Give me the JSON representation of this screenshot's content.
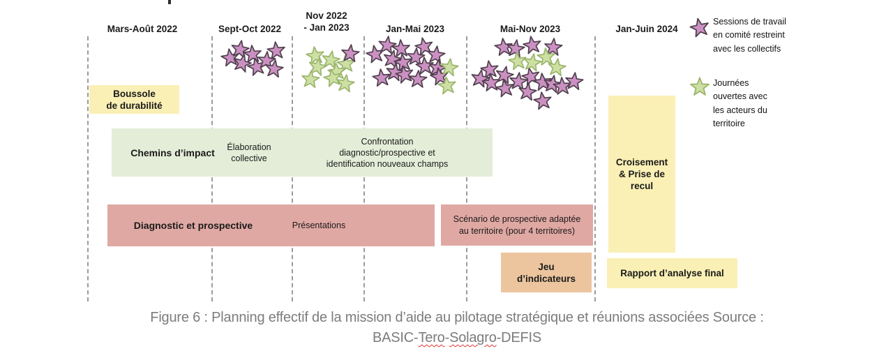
{
  "timeline": {
    "periods": [
      {
        "label": "Mars-Août 2022"
      },
      {
        "label": "Sept-Oct 2022"
      },
      {
        "label": "Nov 2022\n- Jan 2023"
      },
      {
        "label": "Jan-Mai 2023"
      },
      {
        "label": "Mai-Nov 2023"
      },
      {
        "label": "Jan-Juin 2024"
      }
    ]
  },
  "boxes": {
    "boussole": {
      "label": "Boussole\nde durabilité"
    },
    "chemins": {
      "title": "Chemins d’impact",
      "elaboration": "Élaboration\ncollective",
      "confrontation": "Confrontation\ndiagnostic/prospective et\nidentification nouveaux champs"
    },
    "diagnostic": {
      "title": "Diagnostic et prospective",
      "presentations": "Présentations"
    },
    "scenario": {
      "label": "Scénario de prospective adaptée\nau territoire (pour 4 territoires)"
    },
    "jeu": {
      "label": "Jeu\nd’indicateurs"
    },
    "croisement": {
      "label": "Croisement\n& Prise de\nrecul"
    },
    "rapport": {
      "label": "Rapport d’analyse final"
    }
  },
  "legend": {
    "items": [
      {
        "symbol": "pink-star",
        "label": "Sessions de travail en comité restreint avec les collectifs"
      },
      {
        "symbol": "green-star",
        "label": "Journées ouvertes avec les acteurs du territoire"
      }
    ]
  },
  "caption": {
    "line1": "Figure 6 : Planning effectif de la mission d’aide au pilotage stratégique et réunions associées Source :",
    "line2_prefix": "BASIC-",
    "line2_tero": "Tero",
    "line2_hyphen": "-",
    "line2_solagro": "Solagro",
    "line2_suffix": "-DEFIS"
  },
  "colors": {
    "pink": {
      "fill": "#cb90c2",
      "stroke": "#50404e"
    },
    "green": {
      "fill": "#cedfa4",
      "stroke": "#9ab56b"
    },
    "yellow_box": "#faf0b5",
    "green_bar": "#e4edd8",
    "pink_bar": "#e0a8a3",
    "orange_box": "#ecc59e"
  },
  "stars": {
    "clusters": [
      {
        "name": "sessions-sept-oct",
        "color": "pink",
        "points": [
          [
            330,
            83,
            -8
          ],
          [
            344,
            71,
            10
          ],
          [
            362,
            78,
            -5
          ],
          [
            347,
            91,
            15
          ],
          [
            368,
            96,
            -12
          ],
          [
            382,
            87,
            5
          ],
          [
            396,
            73,
            -6
          ],
          [
            393,
            99,
            8
          ]
        ]
      },
      {
        "name": "journees-nov-jan",
        "color": "green",
        "points": [
          [
            452,
            80,
            -8
          ],
          [
            474,
            86,
            10
          ],
          [
            496,
            92,
            -5
          ],
          [
            455,
            96,
            12
          ],
          [
            483,
            103,
            -8
          ],
          [
            445,
            114,
            6
          ],
          [
            477,
            112,
            -12
          ],
          [
            495,
            120,
            8
          ]
        ]
      },
      {
        "name": "sessions-nov-jan",
        "color": "pink",
        "points": [
          [
            502,
            77,
            6
          ]
        ]
      },
      {
        "name": "sessions-jan-mai",
        "color": "pink",
        "points": [
          [
            538,
            78,
            -10
          ],
          [
            555,
            65,
            8
          ],
          [
            575,
            70,
            -4
          ],
          [
            562,
            85,
            12
          ],
          [
            578,
            90,
            -8
          ],
          [
            596,
            82,
            5
          ],
          [
            608,
            67,
            -12
          ],
          [
            625,
            79,
            7
          ],
          [
            609,
            95,
            -5
          ],
          [
            627,
            98,
            10
          ],
          [
            547,
            112,
            -7
          ],
          [
            566,
            104,
            9
          ],
          [
            580,
            107,
            -12
          ],
          [
            599,
            114,
            4
          ],
          [
            630,
            110,
            -9
          ]
        ]
      },
      {
        "name": "journees-jan-mai",
        "color": "green",
        "points": [
          [
            644,
            97,
            8
          ],
          [
            641,
            123,
            -8
          ]
        ]
      },
      {
        "name": "sessions-mai-nov",
        "color": "pink",
        "points": [
          [
            722,
            68,
            -6
          ],
          [
            739,
            70,
            8
          ],
          [
            763,
            65,
            -10
          ],
          [
            793,
            68,
            5
          ],
          [
            702,
            100,
            -8
          ],
          [
            688,
            113,
            10
          ],
          [
            704,
            119,
            -5
          ],
          [
            723,
            108,
            12
          ],
          [
            724,
            127,
            -10
          ],
          [
            743,
            117,
            6
          ],
          [
            761,
            110,
            -12
          ],
          [
            756,
            132,
            8
          ],
          [
            778,
            118,
            -6
          ],
          [
            792,
            121,
            10
          ],
          [
            806,
            124,
            -4
          ],
          [
            823,
            117,
            6
          ],
          [
            778,
            145,
            -8
          ]
        ]
      },
      {
        "name": "journees-mai-nov",
        "color": "green",
        "points": [
          [
            742,
            88,
            -8
          ],
          [
            763,
            90,
            10
          ],
          [
            783,
            82,
            -5
          ],
          [
            798,
            97,
            8
          ]
        ]
      },
      {
        "name": "legend-sessions",
        "color": "pink",
        "points": [
          [
            1003,
            40,
            -12,
            1.05
          ]
        ]
      },
      {
        "name": "legend-journees",
        "color": "green",
        "points": [
          [
            1003,
            125,
            0,
            1.05
          ]
        ]
      }
    ]
  }
}
